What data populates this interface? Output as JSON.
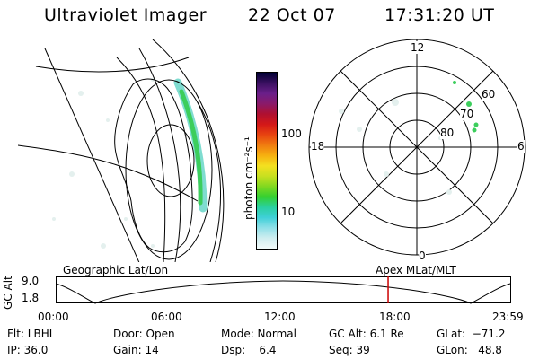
{
  "header": {
    "instrument": "Ultraviolet Imager",
    "date": "22 Oct 07",
    "time": "17:31:20 UT"
  },
  "colorbar": {
    "label": "photon cm⁻²s⁻¹",
    "ticks": [
      "100",
      "10"
    ],
    "colors": [
      "#000033",
      "#3a1060",
      "#6a1f8a",
      "#8a1a6a",
      "#b01030",
      "#d41818",
      "#e84410",
      "#f07c10",
      "#f6b010",
      "#f4e020",
      "#c8e020",
      "#80d820",
      "#34d030",
      "#2ad0a0",
      "#40d0d8",
      "#90e0e8",
      "#d0eef0",
      "#f2fafa"
    ]
  },
  "polar_map": {
    "mlt_labels": [
      "12",
      "18",
      "6",
      "0"
    ],
    "lat_labels": [
      "60",
      "70",
      "80"
    ]
  },
  "timeline": {
    "left_title": "Geographic Lat/Lon",
    "right_title": "Apex MLat/MLT",
    "axis_label": "GC Alt",
    "y_ticks": [
      "9.0",
      "1.8"
    ],
    "x_ticks": [
      "00:00",
      "06:00",
      "12:00",
      "18:00",
      "23:59"
    ],
    "current_time_fraction": 0.7303,
    "marker_color": "#cc0000"
  },
  "status": {
    "flt": "Flt: LBHL",
    "ip": "IP: 36.0",
    "door": "Door: Open",
    "gain": "Gain: 14",
    "mode": "Mode: Normal",
    "dsp": "Dsp:    6.4",
    "gc_alt": "GC Alt: 6.1 Re",
    "seq": "Seq: 39",
    "glat": "GLat:  −71.2",
    "glon": "GLon:   48.8"
  }
}
